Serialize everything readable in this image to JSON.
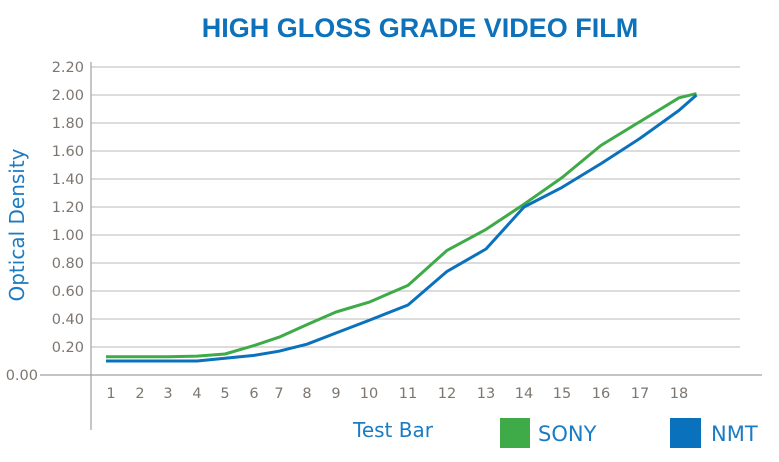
{
  "chart_data": {
    "type": "line",
    "title": "HIGH GLOSS GRADE VIDEO FILM",
    "xlabel": "Test Bar",
    "ylabel": "Optical Density",
    "categories": [
      "1",
      "2",
      "3",
      "4",
      "5",
      "6",
      "7",
      "8",
      "9",
      "10",
      "11",
      "12",
      "13",
      "14",
      "15",
      "16",
      "17",
      "18"
    ],
    "yticks": [
      "0.00",
      "0.20",
      "0.40",
      "0.60",
      "0.80",
      "1.00",
      "1.20",
      "1.40",
      "1.60",
      "1.80",
      "2.00",
      "2.20"
    ],
    "ylim": [
      0,
      2.2
    ],
    "grid": true,
    "legend_placement": "bottom-right",
    "series": [
      {
        "name": "SONY",
        "color": "#3eaa48",
        "x": [
          1,
          2,
          3,
          4,
          5,
          6,
          7,
          8,
          9,
          10,
          11,
          12,
          13,
          14,
          15,
          16,
          17,
          18,
          18.45
        ],
        "values": [
          0.13,
          0.13,
          0.13,
          0.135,
          0.15,
          0.21,
          0.27,
          0.36,
          0.45,
          0.52,
          0.64,
          0.89,
          1.04,
          1.22,
          1.41,
          1.64,
          1.81,
          1.98,
          2.01
        ]
      },
      {
        "name": "NMT",
        "color": "#0a72bc",
        "x": [
          1,
          2,
          3,
          4,
          5,
          6,
          7,
          8,
          9,
          10,
          11,
          12,
          13,
          14,
          15,
          16,
          17,
          18,
          18.45
        ],
        "values": [
          0.1,
          0.1,
          0.1,
          0.1,
          0.12,
          0.14,
          0.17,
          0.22,
          0.3,
          0.39,
          0.5,
          0.74,
          0.9,
          1.2,
          1.34,
          1.51,
          1.69,
          1.89,
          2.0
        ]
      }
    ]
  }
}
